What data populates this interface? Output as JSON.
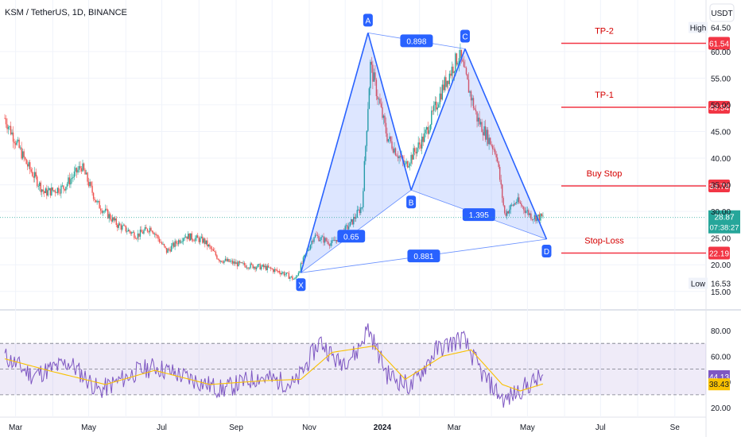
{
  "header": {
    "symbol": "KSM / TetherUS, 1D, BINANCE",
    "currency": "USDT"
  },
  "chart_data": [
    {
      "type": "candlestick",
      "title": "KSM / TetherUS, 1D, BINANCE",
      "ylabel": "USDT",
      "ylim": [
        15,
        65
      ],
      "y_ticks": [
        15,
        20,
        25,
        30,
        35,
        40,
        45,
        50,
        55,
        60,
        64.5
      ],
      "y_tick_labels": [
        "15.00",
        "20.00",
        "25.00",
        "30.00",
        "35.00",
        "40.00",
        "45.00",
        "50.00",
        "55.00",
        "60.00",
        "64.50"
      ],
      "x_ticks": [
        "Mar",
        "May",
        "Jul",
        "Sep",
        "Nov",
        "2024",
        "Mar",
        "May",
        "Jul",
        "Se"
      ],
      "grid": true,
      "colors": {
        "up": "#26a69a",
        "down": "#ef5350",
        "pattern": "#2962ff",
        "pattern_fill": "#2962ff",
        "level": "#f23645"
      },
      "price_path": [
        {
          "x": "2023-02-20",
          "y": 47.5
        },
        {
          "x": "2023-03-10",
          "y": 39.0
        },
        {
          "x": "2023-03-25",
          "y": 33.5
        },
        {
          "x": "2023-04-10",
          "y": 34.5
        },
        {
          "x": "2023-04-25",
          "y": 38.5
        },
        {
          "x": "2023-05-08",
          "y": 31.5
        },
        {
          "x": "2023-05-25",
          "y": 27.5
        },
        {
          "x": "2023-06-10",
          "y": 25.5
        },
        {
          "x": "2023-06-22",
          "y": 27.0
        },
        {
          "x": "2023-07-05",
          "y": 22.5
        },
        {
          "x": "2023-07-20",
          "y": 25.5
        },
        {
          "x": "2023-08-05",
          "y": 24.5
        },
        {
          "x": "2023-08-18",
          "y": 21.0
        },
        {
          "x": "2023-09-05",
          "y": 20.0
        },
        {
          "x": "2023-09-25",
          "y": 19.5
        },
        {
          "x": "2023-10-10",
          "y": 18.5
        },
        {
          "x": "2023-10-20",
          "y": 17.2
        },
        {
          "x": "2023-11-05",
          "y": 25.5
        },
        {
          "x": "2023-11-20",
          "y": 24.0
        },
        {
          "x": "2023-12-05",
          "y": 27.5
        },
        {
          "x": "2023-12-15",
          "y": 31.0
        },
        {
          "x": "2023-12-22",
          "y": 57.5
        },
        {
          "x": "2024-01-05",
          "y": 44.0
        },
        {
          "x": "2024-01-20",
          "y": 38.5
        },
        {
          "x": "2024-02-05",
          "y": 44.0
        },
        {
          "x": "2024-02-20",
          "y": 53.0
        },
        {
          "x": "2024-03-05",
          "y": 59.5
        },
        {
          "x": "2024-03-20",
          "y": 47.5
        },
        {
          "x": "2024-04-05",
          "y": 41.0
        },
        {
          "x": "2024-04-12",
          "y": 29.5
        },
        {
          "x": "2024-04-22",
          "y": 32.0
        },
        {
          "x": "2024-05-05",
          "y": 29.0
        },
        {
          "x": "2024-05-14",
          "y": 28.87
        }
      ],
      "harmonic_pattern": {
        "points": [
          {
            "label": "X",
            "x": "2023-10-25",
            "y": 18.5
          },
          {
            "label": "A",
            "x": "2023-12-20",
            "y": 63.5
          },
          {
            "label": "B",
            "x": "2024-01-25",
            "y": 34.0
          },
          {
            "label": "C",
            "x": "2024-03-10",
            "y": 60.5
          },
          {
            "label": "D",
            "x": "2024-05-17",
            "y": 24.8
          }
        ],
        "ratios": [
          {
            "text": "0.898",
            "between": "A-C"
          },
          {
            "text": "0.65",
            "between": "X-B"
          },
          {
            "text": "1.395",
            "between": "B-D"
          },
          {
            "text": "0.881",
            "between": "X-D"
          }
        ]
      },
      "levels": [
        {
          "label": "TP-2",
          "value": 61.54,
          "price_label": "61.54"
        },
        {
          "label": "TP-1",
          "value": 49.54,
          "price_label": "49.54"
        },
        {
          "label": "Buy Stop",
          "value": 34.78,
          "price_label": "34.78"
        },
        {
          "label": "Stop-Loss",
          "value": 22.19,
          "price_label": "22.19"
        }
      ],
      "current_price": {
        "value": 28.87,
        "label": "28.87",
        "countdown": "07:38:27"
      },
      "high": {
        "label": "High",
        "value": "64.50"
      },
      "low": {
        "label": "Low",
        "value": "16.53"
      }
    },
    {
      "type": "line",
      "title": "",
      "ylim": [
        20,
        90
      ],
      "y_ticks": [
        20,
        40,
        60,
        80
      ],
      "y_tick_labels": [
        "20.00",
        "40.00",
        "60.00",
        "80.00"
      ],
      "band": {
        "upper": 70,
        "middle": 50,
        "lower": 30,
        "fill": "#7e57c2"
      },
      "series": [
        {
          "color": "#7e57c2",
          "last": 44.13,
          "last_label": "44.13",
          "points": [
            {
              "x": "2023-02-20",
              "y": 60
            },
            {
              "x": "2023-03-15",
              "y": 45
            },
            {
              "x": "2023-04-15",
              "y": 55
            },
            {
              "x": "2023-05-10",
              "y": 33
            },
            {
              "x": "2023-06-10",
              "y": 48
            },
            {
              "x": "2023-06-25",
              "y": 52
            },
            {
              "x": "2023-07-20",
              "y": 44
            },
            {
              "x": "2023-08-20",
              "y": 34
            },
            {
              "x": "2023-09-20",
              "y": 44
            },
            {
              "x": "2023-10-20",
              "y": 38
            },
            {
              "x": "2023-11-10",
              "y": 72
            },
            {
              "x": "2023-11-25",
              "y": 55
            },
            {
              "x": "2023-12-10",
              "y": 62
            },
            {
              "x": "2023-12-20",
              "y": 82
            },
            {
              "x": "2024-01-05",
              "y": 46
            },
            {
              "x": "2024-01-25",
              "y": 36
            },
            {
              "x": "2024-02-15",
              "y": 65
            },
            {
              "x": "2024-03-08",
              "y": 74
            },
            {
              "x": "2024-03-25",
              "y": 45
            },
            {
              "x": "2024-04-12",
              "y": 25
            },
            {
              "x": "2024-04-25",
              "y": 34
            },
            {
              "x": "2024-05-14",
              "y": 44.13
            }
          ]
        },
        {
          "color": "#f9c100",
          "last": 38.43,
          "last_label": "38.43",
          "points": [
            {
              "x": "2023-02-20",
              "y": 58
            },
            {
              "x": "2023-04-01",
              "y": 48
            },
            {
              "x": "2023-05-15",
              "y": 38
            },
            {
              "x": "2023-06-25",
              "y": 49
            },
            {
              "x": "2023-08-10",
              "y": 38
            },
            {
              "x": "2023-09-25",
              "y": 41
            },
            {
              "x": "2023-10-25",
              "y": 42
            },
            {
              "x": "2023-11-20",
              "y": 63
            },
            {
              "x": "2023-12-25",
              "y": 68
            },
            {
              "x": "2024-01-20",
              "y": 42
            },
            {
              "x": "2024-02-20",
              "y": 60
            },
            {
              "x": "2024-03-15",
              "y": 65
            },
            {
              "x": "2024-04-10",
              "y": 38
            },
            {
              "x": "2024-04-25",
              "y": 33
            },
            {
              "x": "2024-05-14",
              "y": 38.43
            }
          ]
        }
      ]
    }
  ]
}
